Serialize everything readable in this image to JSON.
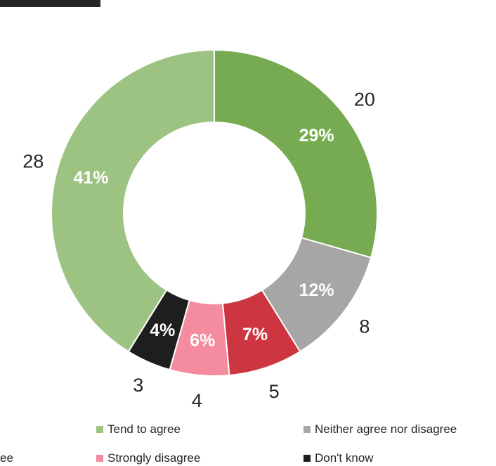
{
  "chart_data": {
    "type": "pie",
    "style": "donut",
    "categories": [
      "Tend to agree",
      "Strongly agree",
      "Neither agree nor disagree",
      "Tend to disagree",
      "Strongly disagree",
      "Don't know"
    ],
    "values": [
      28,
      20,
      8,
      5,
      4,
      3
    ],
    "percent_labels": [
      "41%",
      "29%",
      "12%",
      "7%",
      "6%",
      "4%"
    ],
    "colors": [
      "#9dc383",
      "#76ab51",
      "#a6a6a6",
      "#cd3540",
      "#f48b9f",
      "#1e1e1e"
    ],
    "legend": {
      "placement": "bottom",
      "entries": [
        {
          "label": "Tend to agree",
          "color": "#9dc383"
        },
        {
          "label": "Neither agree nor disagree",
          "color": "#a6a6a6"
        },
        {
          "label": "ee",
          "color": ""
        },
        {
          "label": "Strongly disagree",
          "color": "#f48b9f"
        },
        {
          "label": "Don't know",
          "color": "#1e1e1e"
        }
      ]
    }
  }
}
